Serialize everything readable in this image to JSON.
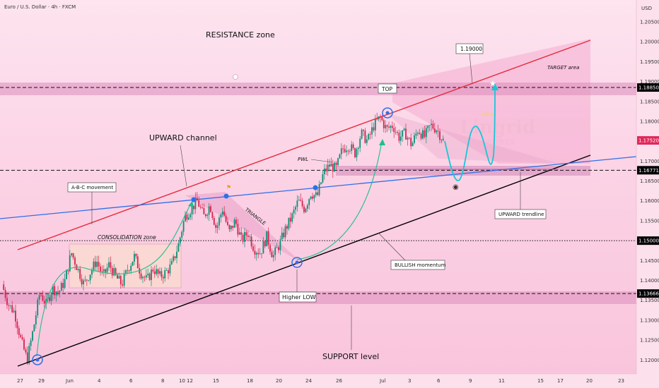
{
  "header": {
    "title": "Euro / U.S. Dollar · 4h · FXCM"
  },
  "chart_data": {
    "type": "candlestick",
    "symbol": "Euro / U.S. Dollar · 4h · FXCM",
    "currency": "USD",
    "ylim": [
      1.1165,
      1.2105
    ],
    "y_ticks": [
      1.205,
      1.2,
      1.195,
      1.19,
      1.185,
      1.18,
      1.175,
      1.17,
      1.165,
      1.16,
      1.155,
      1.15,
      1.145,
      1.14,
      1.135,
      1.13,
      1.125,
      1.12
    ],
    "y_tick_labels": [
      "1.20500",
      "1.20000",
      "1.19500",
      "1.19000",
      "1.18500",
      "1.18000",
      "1.17500",
      "1.17000",
      "1.16500",
      "1.16000",
      "1.15500",
      "1.15000",
      "1.14500",
      "1.14000",
      "1.13500",
      "1.13000",
      "1.12500",
      "1.12000"
    ],
    "x_ticks": [
      "27",
      "29",
      "Jun",
      "4",
      "6",
      "8",
      "10",
      "12",
      "15",
      "18",
      "20",
      "24",
      "26",
      "Jul",
      "3",
      "6",
      "9",
      "11",
      "15",
      "17",
      "20",
      "23"
    ],
    "price_levels": [
      {
        "value": 1.1885,
        "label": "1.18850",
        "style": "dashed"
      },
      {
        "value": 1.1677,
        "label": "1.16771",
        "style": "dashed"
      },
      {
        "value": 1.15,
        "label": "1.15000",
        "style": "dotted"
      },
      {
        "value": 1.1367,
        "label": "1.13666",
        "style": "dashed"
      }
    ],
    "last_price": {
      "value": 1.1752,
      "label": "1.17520"
    },
    "close_path": [
      1.139,
      1.134,
      1.132,
      1.125,
      1.12,
      1.128,
      1.137,
      1.134,
      1.138,
      1.137,
      1.14,
      1.147,
      1.143,
      1.139,
      1.142,
      1.145,
      1.141,
      1.144,
      1.141,
      1.139,
      1.143,
      1.146,
      1.142,
      1.14,
      1.143,
      1.141,
      1.142,
      1.144,
      1.149,
      1.156,
      1.158,
      1.16,
      1.156,
      1.159,
      1.153,
      1.158,
      1.152,
      1.155,
      1.15,
      1.152,
      1.148,
      1.147,
      1.151,
      1.146,
      1.149,
      1.153,
      1.156,
      1.16,
      1.158,
      1.162,
      1.161,
      1.167,
      1.169,
      1.168,
      1.173,
      1.174,
      1.172,
      1.177,
      1.175,
      1.179,
      1.181,
      1.178,
      1.179,
      1.176,
      1.177,
      1.174,
      1.178,
      1.176,
      1.179,
      1.178,
      1.1752
    ],
    "annotations": {
      "resistance_zone": "RESISTANCE zone",
      "target_value": "1.19000",
      "target_area": "TARGET area",
      "top": "TOP",
      "upward_channel": "UPWARD channel",
      "pwl": "PWL",
      "abc": "A-B-C movement",
      "triangle": "TRIANGLE",
      "consolidation": "CONSOLIDATION zone",
      "upward_trendline": "UPWARD trendline",
      "bullish": "BULLISH momentum",
      "higher_low": "Higher LOW",
      "support": "SUPPORT level"
    },
    "watermark": {
      "line1": "Lingrid",
      "line2": "FOREX"
    }
  }
}
